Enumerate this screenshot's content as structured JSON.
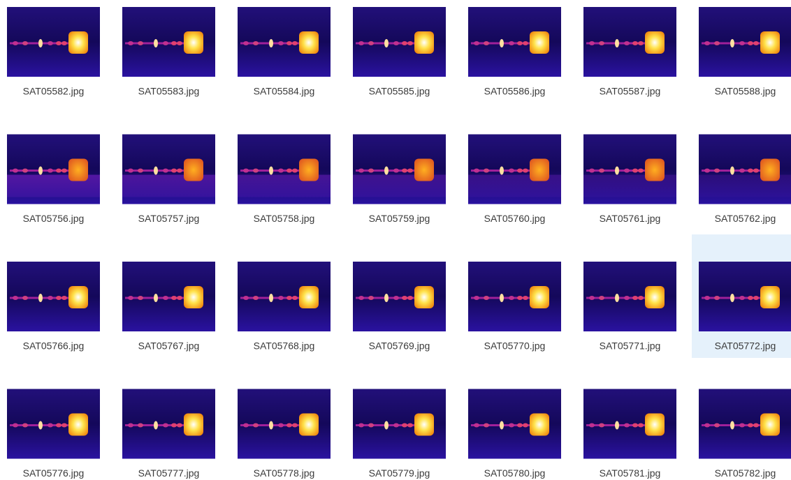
{
  "rows": [
    [
      "SAT05582.jpg",
      "SAT05583.jpg",
      "SAT05584.jpg",
      "SAT05585.jpg",
      "SAT05586.jpg",
      "SAT05587.jpg",
      "SAT05588.jpg"
    ],
    [
      "SAT05756.jpg",
      "SAT05757.jpg",
      "SAT05758.jpg",
      "SAT05759.jpg",
      "SAT05760.jpg",
      "SAT05761.jpg",
      "SAT05762.jpg"
    ],
    [
      "SAT05766.jpg",
      "SAT05767.jpg",
      "SAT05768.jpg",
      "SAT05769.jpg",
      "SAT05770.jpg",
      "SAT05771.jpg",
      "SAT05772.jpg"
    ],
    [
      "SAT05776.jpg",
      "SAT05777.jpg",
      "SAT05778.jpg",
      "SAT05779.jpg",
      "SAT05780.jpg",
      "SAT05781.jpg",
      "SAT05782.jpg"
    ]
  ]
}
